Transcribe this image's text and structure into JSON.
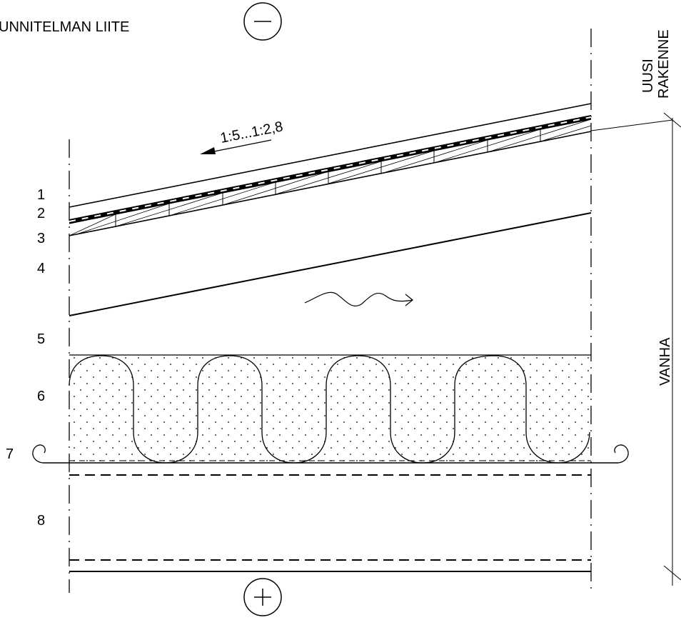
{
  "title": "UNNITELMAN LIITE",
  "top_symbol": "−",
  "bottom_symbol": "+",
  "slope_label": "1:5...1:2,8",
  "side_labels": {
    "new_line1": "UUSI",
    "new_line2": "RAKENNE",
    "old": "VANHA"
  },
  "layers": [
    "1",
    "2",
    "3",
    "4",
    "5",
    "6",
    "7",
    "8"
  ],
  "icons": {
    "top_circle": "minus-circle-icon",
    "bottom_circle": "plus-circle-icon",
    "slope_arrow": "left-arrow-icon",
    "airflow": "wavy-arrow-icon",
    "membrane_ends": "curl-icon"
  }
}
